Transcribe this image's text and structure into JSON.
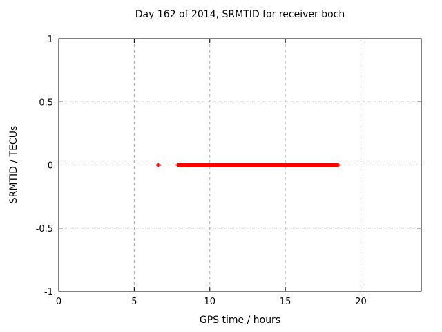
{
  "title": "Day 162 of 2014, SRMTID for receiver boch",
  "colors": {
    "background": "#ffffff",
    "data": "#ff0000",
    "grid": "#a8a8a8",
    "axis": "#000000",
    "text": "#000000"
  },
  "chart_data": {
    "type": "scatter",
    "title": "Day 162 of 2014, SRMTID for receiver boch",
    "xlabel": "GPS time / hours",
    "ylabel": "SRMTID / TECUs",
    "xlim": [
      0,
      24
    ],
    "ylim": [
      -1,
      1
    ],
    "x_ticks": [
      0,
      5,
      10,
      15,
      20
    ],
    "x_tick_labels": [
      "0",
      "5",
      "10",
      "15",
      "20"
    ],
    "y_ticks": [
      1,
      0.5,
      0,
      -0.5,
      -1
    ],
    "y_tick_labels": [
      "1",
      "0.5",
      "0",
      "-0.5",
      "-1"
    ],
    "grid": true,
    "grid_style": "dashed",
    "legend": false,
    "marker": "plus",
    "series": [
      {
        "name": "SRMTID",
        "color": "#ff0000",
        "isolated_points": [
          {
            "x": 6.6,
            "y": 0
          }
        ],
        "dense_segments": [
          {
            "x_start": 7.9,
            "x_end": 18.5,
            "y": 0
          }
        ]
      }
    ]
  }
}
